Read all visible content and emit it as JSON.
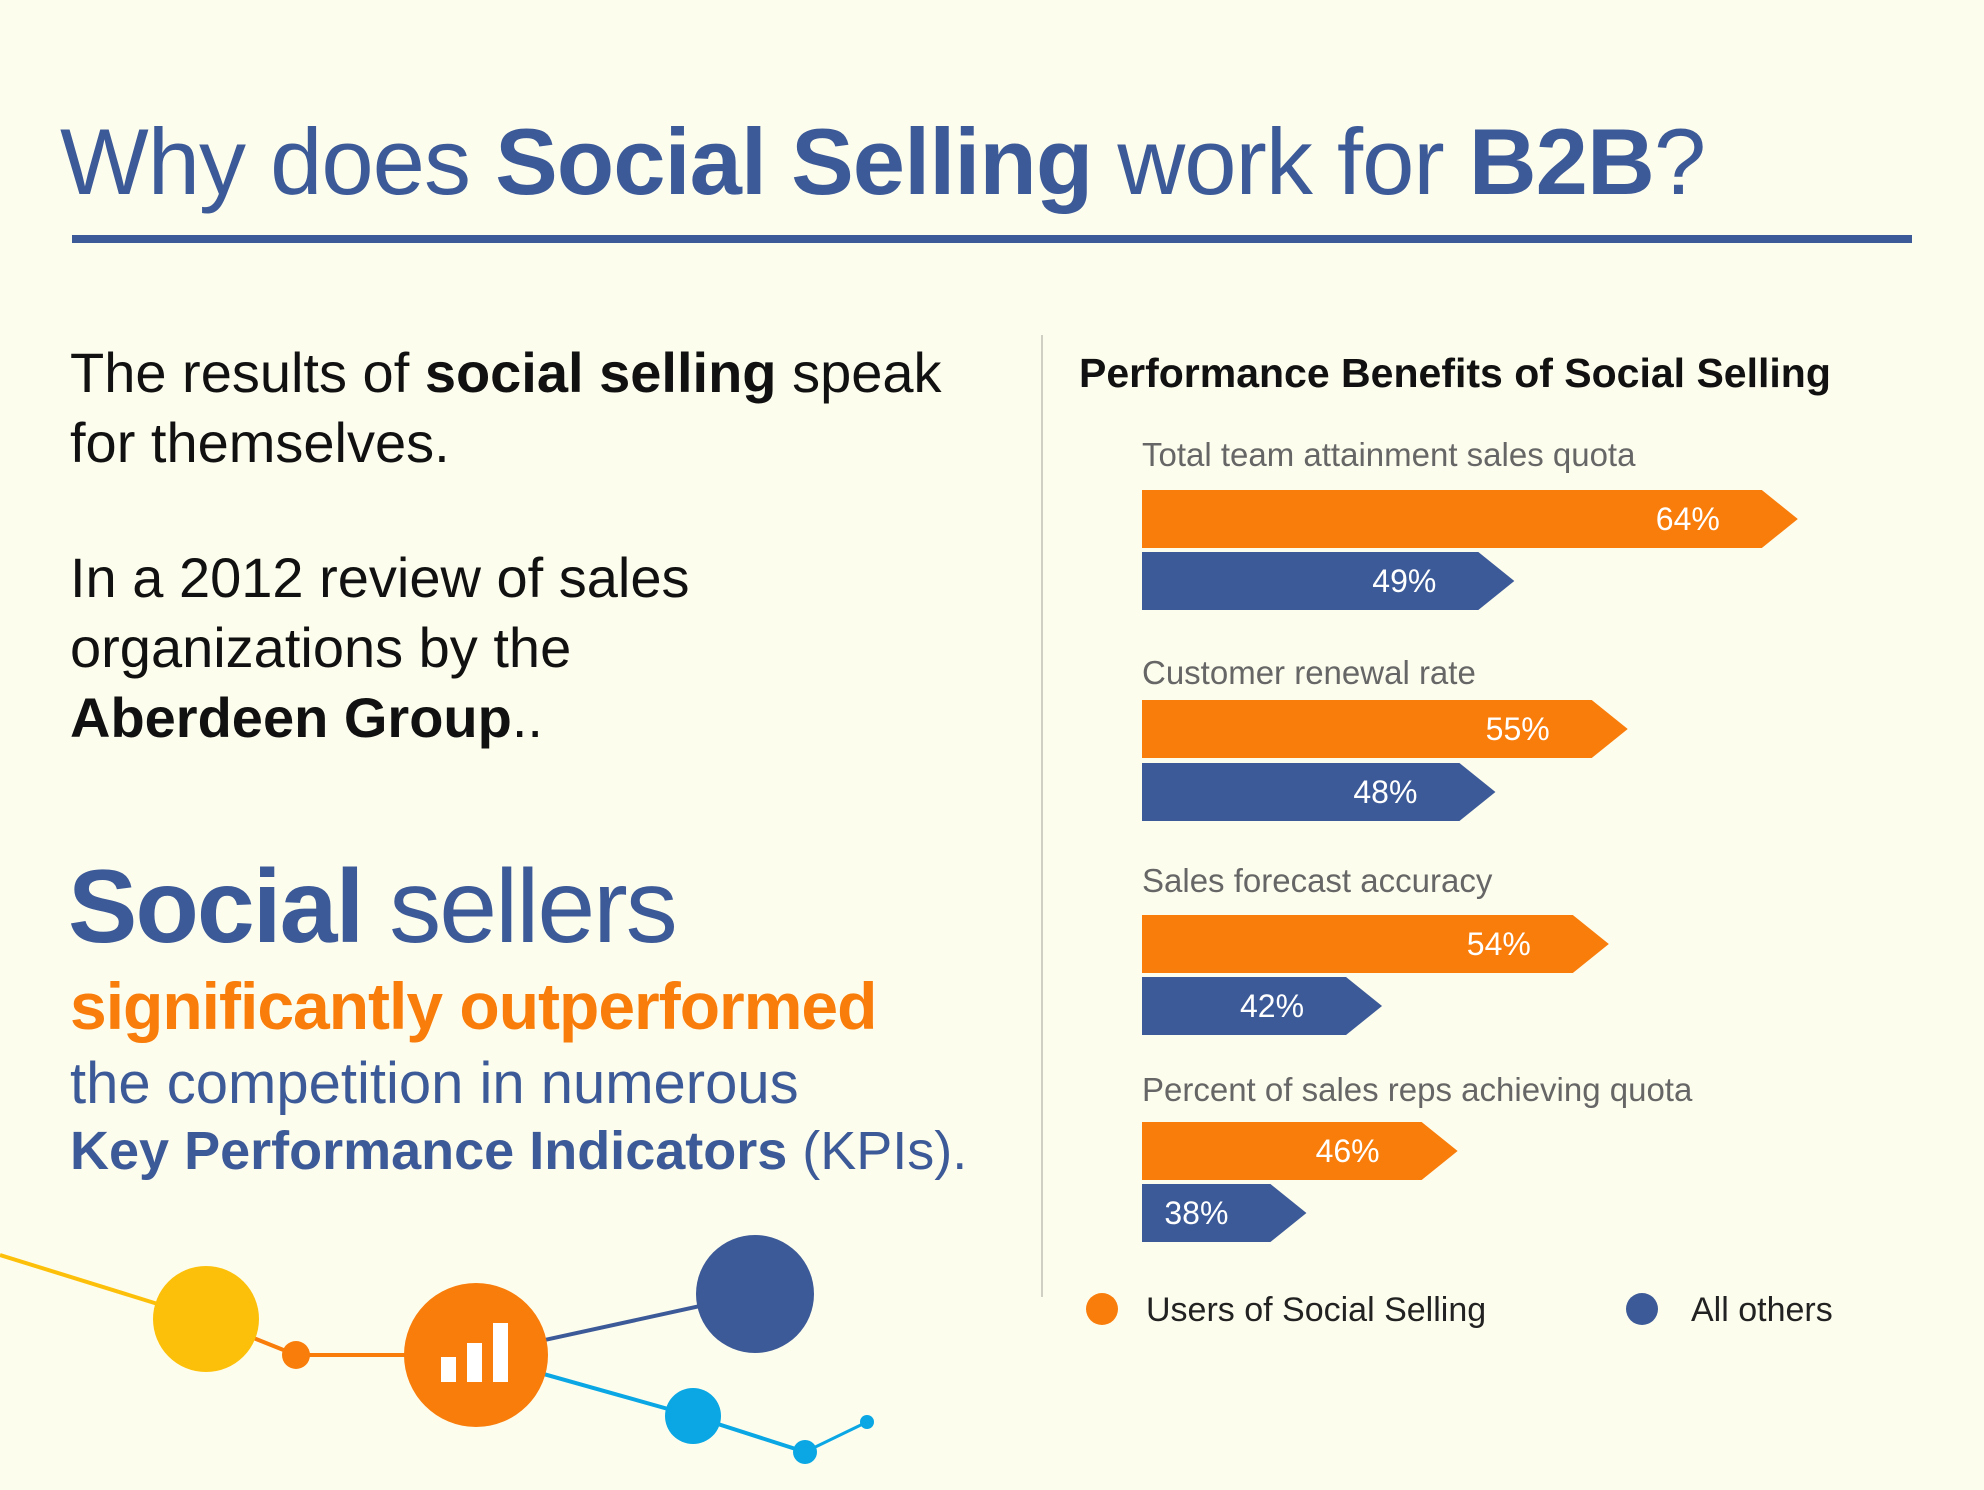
{
  "header": {
    "title_parts": [
      "Why does ",
      "Social Selling",
      " work for ",
      "B2B",
      "?"
    ]
  },
  "left": {
    "p1": [
      "The results of ",
      "social selling",
      " speak",
      "for themselves."
    ],
    "p2": [
      "In a 2012 review of sales",
      "organizations by the",
      "Aberdeen Group",
      ".."
    ],
    "social_bold": "Social",
    "social_rest": " sellers",
    "outperformed": "significantly outperformed",
    "competition": "the competition in numerous",
    "kpi_bold": "Key Performance Indicators",
    "kpi_rest": " (KPIs)."
  },
  "colors": {
    "background": "#fdfdee",
    "blue": "#3d5a98",
    "orange": "#f97d0b",
    "yellow": "#fdc00a",
    "light_blue": "#0aa7e4"
  },
  "decoration": {
    "icon": "bar-chart-icon"
  },
  "chart_data": {
    "type": "bar",
    "orientation": "horizontal",
    "title": "Performance Benefits of Social Selling",
    "categories": [
      "Total team attainment sales quota",
      "Customer renewal rate",
      "Sales forecast accuracy",
      "Percent of sales reps achieving quota"
    ],
    "series": [
      {
        "name": "Users of Social Selling",
        "color": "#f97d0b",
        "values": [
          64,
          55,
          54,
          46
        ],
        "labels": [
          "64%",
          "55%",
          "54%",
          "46%"
        ]
      },
      {
        "name": "All others",
        "color": "#3d5a98",
        "values": [
          49,
          48,
          42,
          38
        ],
        "labels": [
          "49%",
          "48%",
          "42%",
          "38%"
        ]
      }
    ],
    "unit": "%",
    "grid": false,
    "legend": "bottom"
  }
}
